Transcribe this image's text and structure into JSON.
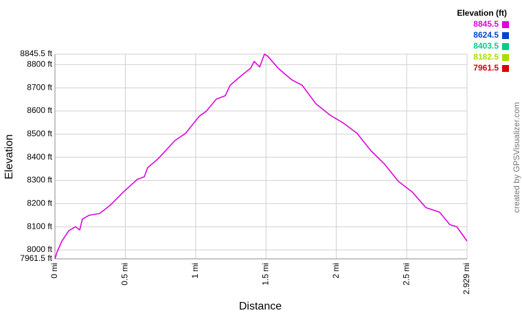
{
  "chart_data": {
    "type": "line",
    "x_label": "Distance",
    "y_label": "Elevation",
    "credit": "created by GPSVisualizer.com",
    "legend_title": "Elevation (ft)",
    "color_scale": [
      {
        "value": 8845.5,
        "color": "#dd00dd"
      },
      {
        "value": 8624.5,
        "color": "#0044cc"
      },
      {
        "value": 8403.5,
        "color": "#00cc88"
      },
      {
        "value": 8182.5,
        "color": "#aadd00"
      },
      {
        "value": 7961.5,
        "color": "#dd0000"
      }
    ],
    "x": [
      0,
      0.015,
      0.049,
      0.098,
      0.146,
      0.176,
      0.195,
      0.244,
      0.317,
      0.391,
      0.488,
      0.586,
      0.635,
      0.659,
      0.732,
      0.854,
      0.928,
      1.025,
      1.074,
      1.147,
      1.211,
      1.245,
      1.318,
      1.391,
      1.416,
      1.455,
      1.489,
      1.513,
      1.586,
      1.684,
      1.757,
      1.855,
      1.953,
      2.05,
      2.148,
      2.245,
      2.343,
      2.441,
      2.538,
      2.636,
      2.734,
      2.807,
      2.856,
      2.929
    ],
    "values": [
      7961.5,
      7991,
      8038,
      8083,
      8100,
      8086,
      8133,
      8150,
      8157,
      8192,
      8251,
      8305,
      8316,
      8355,
      8393,
      8473,
      8503,
      8577,
      8598,
      8651,
      8666,
      8711,
      8749,
      8785,
      8814,
      8790,
      8845.5,
      8836,
      8785,
      8734,
      8711,
      8631,
      8583,
      8548,
      8503,
      8429,
      8370,
      8296,
      8251,
      8183,
      8163,
      8109,
      8100,
      8038
    ],
    "xlim": [
      0,
      2.929
    ],
    "xticks": [
      {
        "value": 0,
        "label": "0 mi"
      },
      {
        "value": 0.5,
        "label": "0.5 mi"
      },
      {
        "value": 1,
        "label": "1 mi"
      },
      {
        "value": 1.5,
        "label": "1.5 mi"
      },
      {
        "value": 2,
        "label": "2 mi"
      },
      {
        "value": 2.5,
        "label": "2.5 mi"
      },
      {
        "value": 2.929,
        "label": "2.929 mi"
      }
    ],
    "ylim": [
      7961.5,
      8845.5
    ],
    "yticks": [
      {
        "value": 7961.5,
        "label": "7961.5 ft"
      },
      {
        "value": 8000,
        "label": "8000 ft"
      },
      {
        "value": 8100,
        "label": "8100 ft"
      },
      {
        "value": 8200,
        "label": "8200 ft"
      },
      {
        "value": 8300,
        "label": "8300 ft"
      },
      {
        "value": 8400,
        "label": "8400 ft"
      },
      {
        "value": 8500,
        "label": "8500 ft"
      },
      {
        "value": 8600,
        "label": "8600 ft"
      },
      {
        "value": 8700,
        "label": "8700 ft"
      },
      {
        "value": 8800,
        "label": "8800 ft"
      },
      {
        "value": 8845.5,
        "label": "8845.5 ft"
      }
    ],
    "grid": true
  }
}
